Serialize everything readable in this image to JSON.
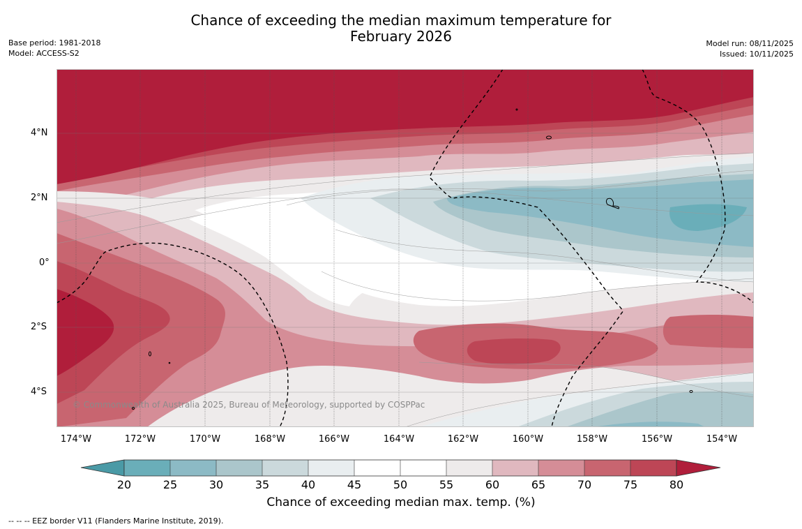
{
  "title": {
    "line1": "Chance of exceeding the median maximum temperature for",
    "line2": "February 2026"
  },
  "meta_left": {
    "base_period": "Base period: 1981-2018",
    "model": "Model: ACCESS-S2"
  },
  "meta_right": {
    "model_run": "Model run: 08/11/2025",
    "issued": "Issued: 10/11/2025"
  },
  "lat_labels": [
    "4°N",
    "2°N",
    "0°",
    "2°S",
    "4°S"
  ],
  "lon_labels": [
    "174°W",
    "172°W",
    "170°W",
    "168°W",
    "166°W",
    "164°W",
    "162°W",
    "160°W",
    "158°W",
    "156°W",
    "154°W"
  ],
  "copyright": "© Commonwealth of Australia 2025, Bureau of Meteorology, supported by COSPPac",
  "colorbar": {
    "ticks": [
      "20",
      "25",
      "30",
      "35",
      "40",
      "45",
      "50",
      "55",
      "60",
      "65",
      "70",
      "75",
      "80"
    ],
    "colors": {
      "below20": "#4a9aa6",
      "b20_25": "#6aaeb9",
      "b25_30": "#8cbac5",
      "b30_35": "#abc6cb",
      "b35_40": "#cbd9dc",
      "b40_45": "#e9eef0",
      "b45_50": "#ffffff",
      "b50_55": "#ffffff",
      "b55_60": "#eeebeb",
      "b60_65": "#e0b8bf",
      "b65_70": "#d58d97",
      "b70_75": "#c86570",
      "b75_80": "#bd4656",
      "above80": "#b01e3b"
    },
    "title": "Chance of exceeding median max. temp. (%)"
  },
  "footnote": "-- -- -- EEZ border V11 (Flanders Marine Institute, 2019)."
}
